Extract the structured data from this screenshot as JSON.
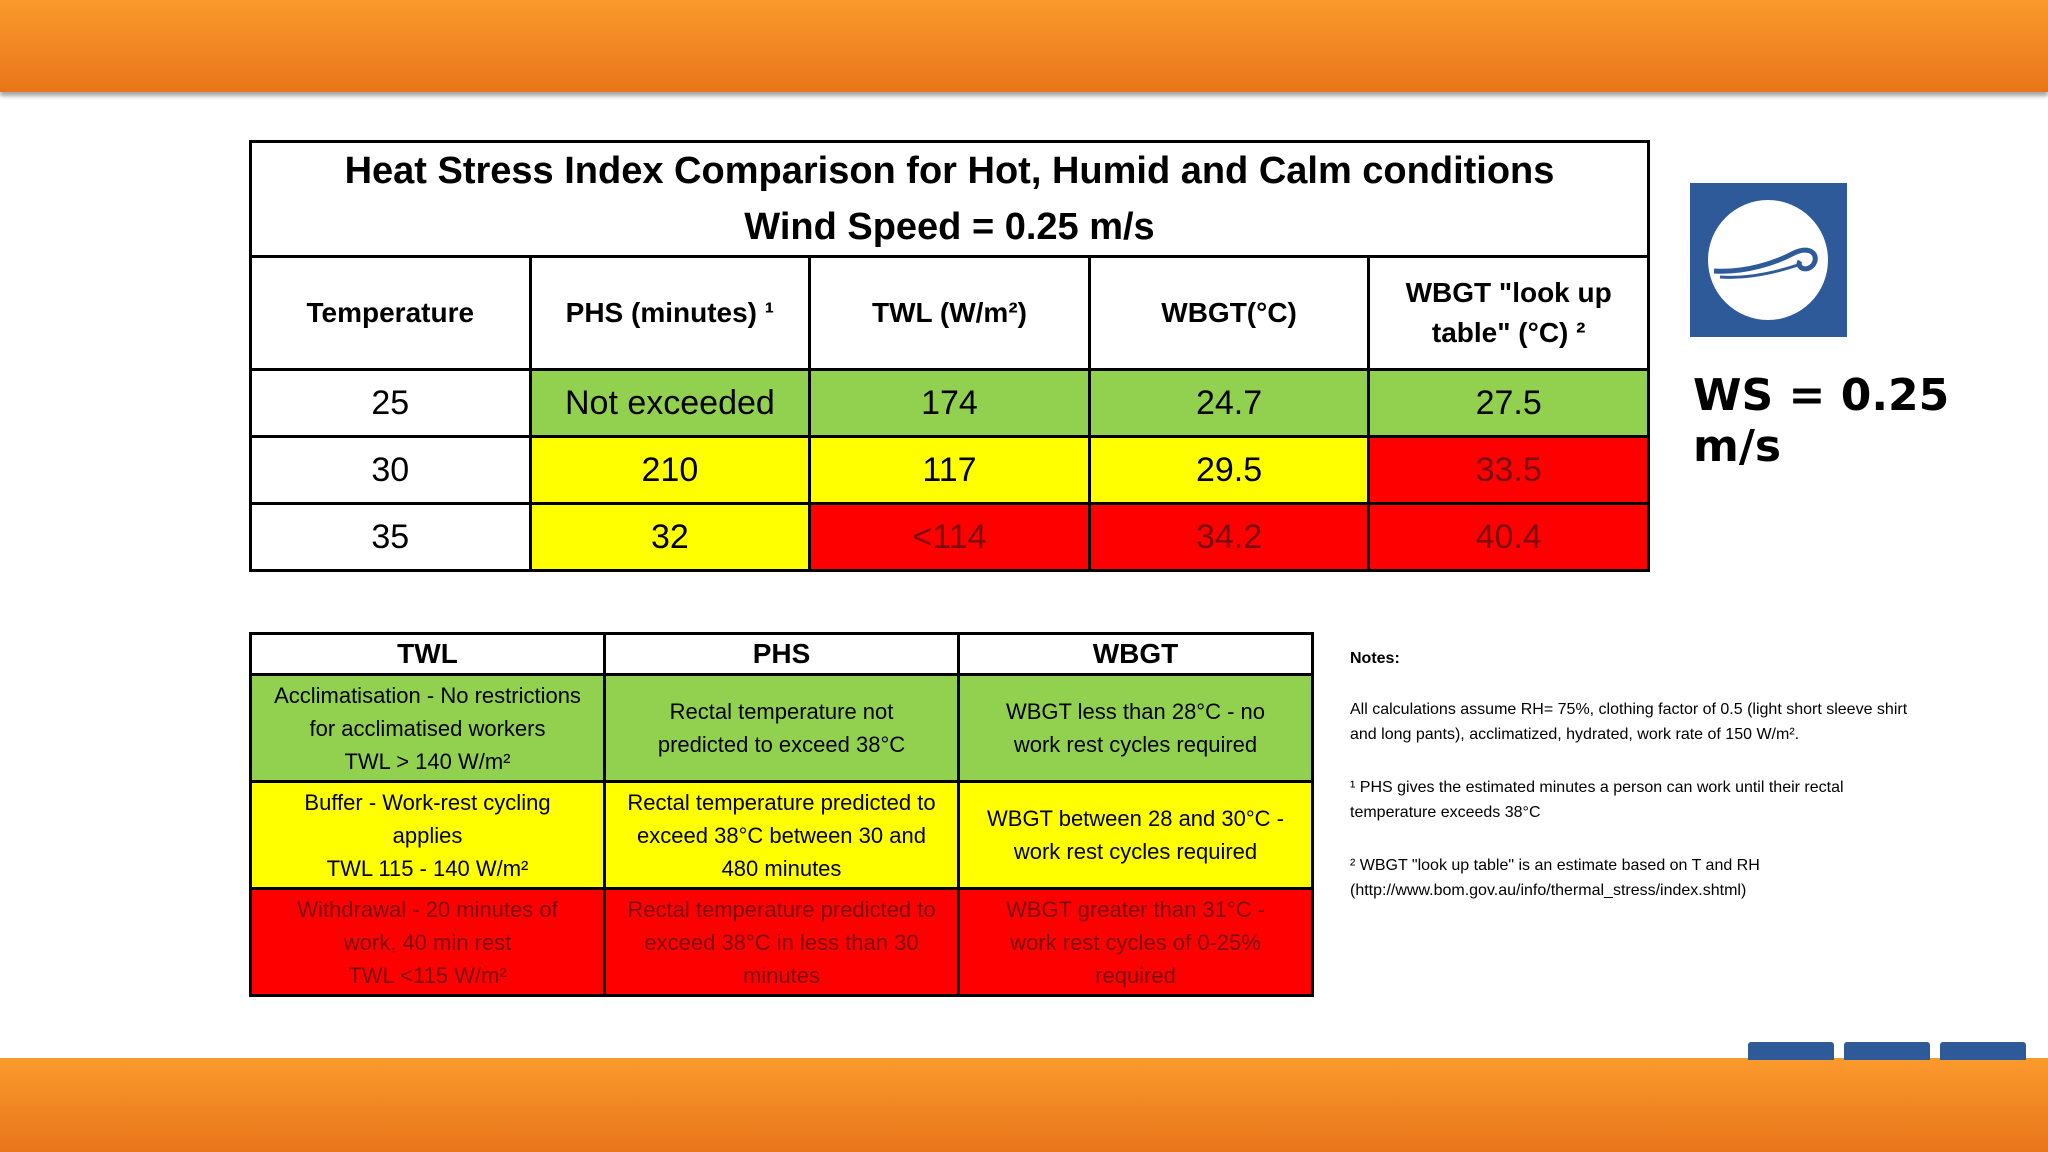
{
  "table": {
    "title_lines": [
      "Heat Stress Index Comparison for Hot, Humid and Calm conditions",
      "Wind Speed = 0.25 m/s"
    ],
    "headers": [
      "Temperature",
      "PHS (minutes) ¹",
      "TWL (W/m²)",
      "WBGT(°C)",
      "WBGT \"look up table\" (°C) ²"
    ],
    "rows": [
      {
        "temperature": 25,
        "cells": [
          {
            "text": "Not exceeded",
            "color": "#92d050"
          },
          {
            "text": 174,
            "color": "#92d050"
          },
          {
            "text": 24.7,
            "color": "#92d050"
          },
          {
            "text": 27.5,
            "color": "#92d050"
          }
        ]
      },
      {
        "temperature": 30,
        "cells": [
          {
            "text": 210,
            "color": "#ffff00"
          },
          {
            "text": 117,
            "color": "#ffff00"
          },
          {
            "text": 29.5,
            "color": "#ffff00"
          },
          {
            "text": 33.5,
            "color": "#ff0000"
          }
        ]
      },
      {
        "temperature": 35,
        "cells": [
          {
            "text": 32,
            "color": "#ffff00"
          },
          {
            "text": "<114",
            "color": "#ff0000"
          },
          {
            "text": 34.2,
            "color": "#ff0000"
          },
          {
            "text": 40.4,
            "color": "#ff0000"
          }
        ]
      }
    ]
  },
  "wind_label": "WS = 0.25 m/s",
  "legend": {
    "headers": [
      "TWL",
      "PHS",
      "WBGT"
    ],
    "rows": [
      {
        "color": "#92d050",
        "cells": [
          [
            "Acclimatisation - No restrictions",
            "for acclimatised workers",
            "TWL > 140 W/m²"
          ],
          [
            "Rectal temperature not",
            "predicted to exceed 38°C"
          ],
          [
            "WBGT less than 28°C - no",
            "work rest cycles required"
          ]
        ]
      },
      {
        "color": "#ffff00",
        "cells": [
          [
            "Buffer - Work-rest cycling",
            "applies",
            "TWL 115 - 140 W/m²"
          ],
          [
            "Rectal temperature predicted to",
            "exceed 38°C between 30 and",
            "480 minutes"
          ],
          [
            "WBGT between 28 and 30°C -",
            "work rest cycles required"
          ]
        ]
      },
      {
        "color": "#ff0000",
        "cells": [
          [
            "Withdrawal - 20 minutes of",
            "work, 40 min rest",
            "TWL <115 W/m²"
          ],
          [
            "Rectal temperature predicted to",
            "exceed 38°C in less than 30",
            "minutes"
          ],
          [
            "WBGT greater than 31°C -",
            "work rest cycles of 0-25%",
            "required"
          ]
        ]
      }
    ]
  },
  "notes": {
    "title": "Notes:",
    "paragraphs": [
      [
        "All calculations assume RH= 75%, clothing factor of 0.5 (light short sleeve shirt",
        "and long pants), acclimatized, hydrated, work rate of 150 W/m²."
      ],
      [
        "¹ PHS gives the estimated minutes a person can work until their rectal",
        "temperature exceeds 38°C"
      ],
      [
        "² WBGT \"look up table\" is an estimate based on T and RH",
        "(http://www.bom.gov.au/info/thermal_stress/index.shtml)"
      ]
    ]
  }
}
